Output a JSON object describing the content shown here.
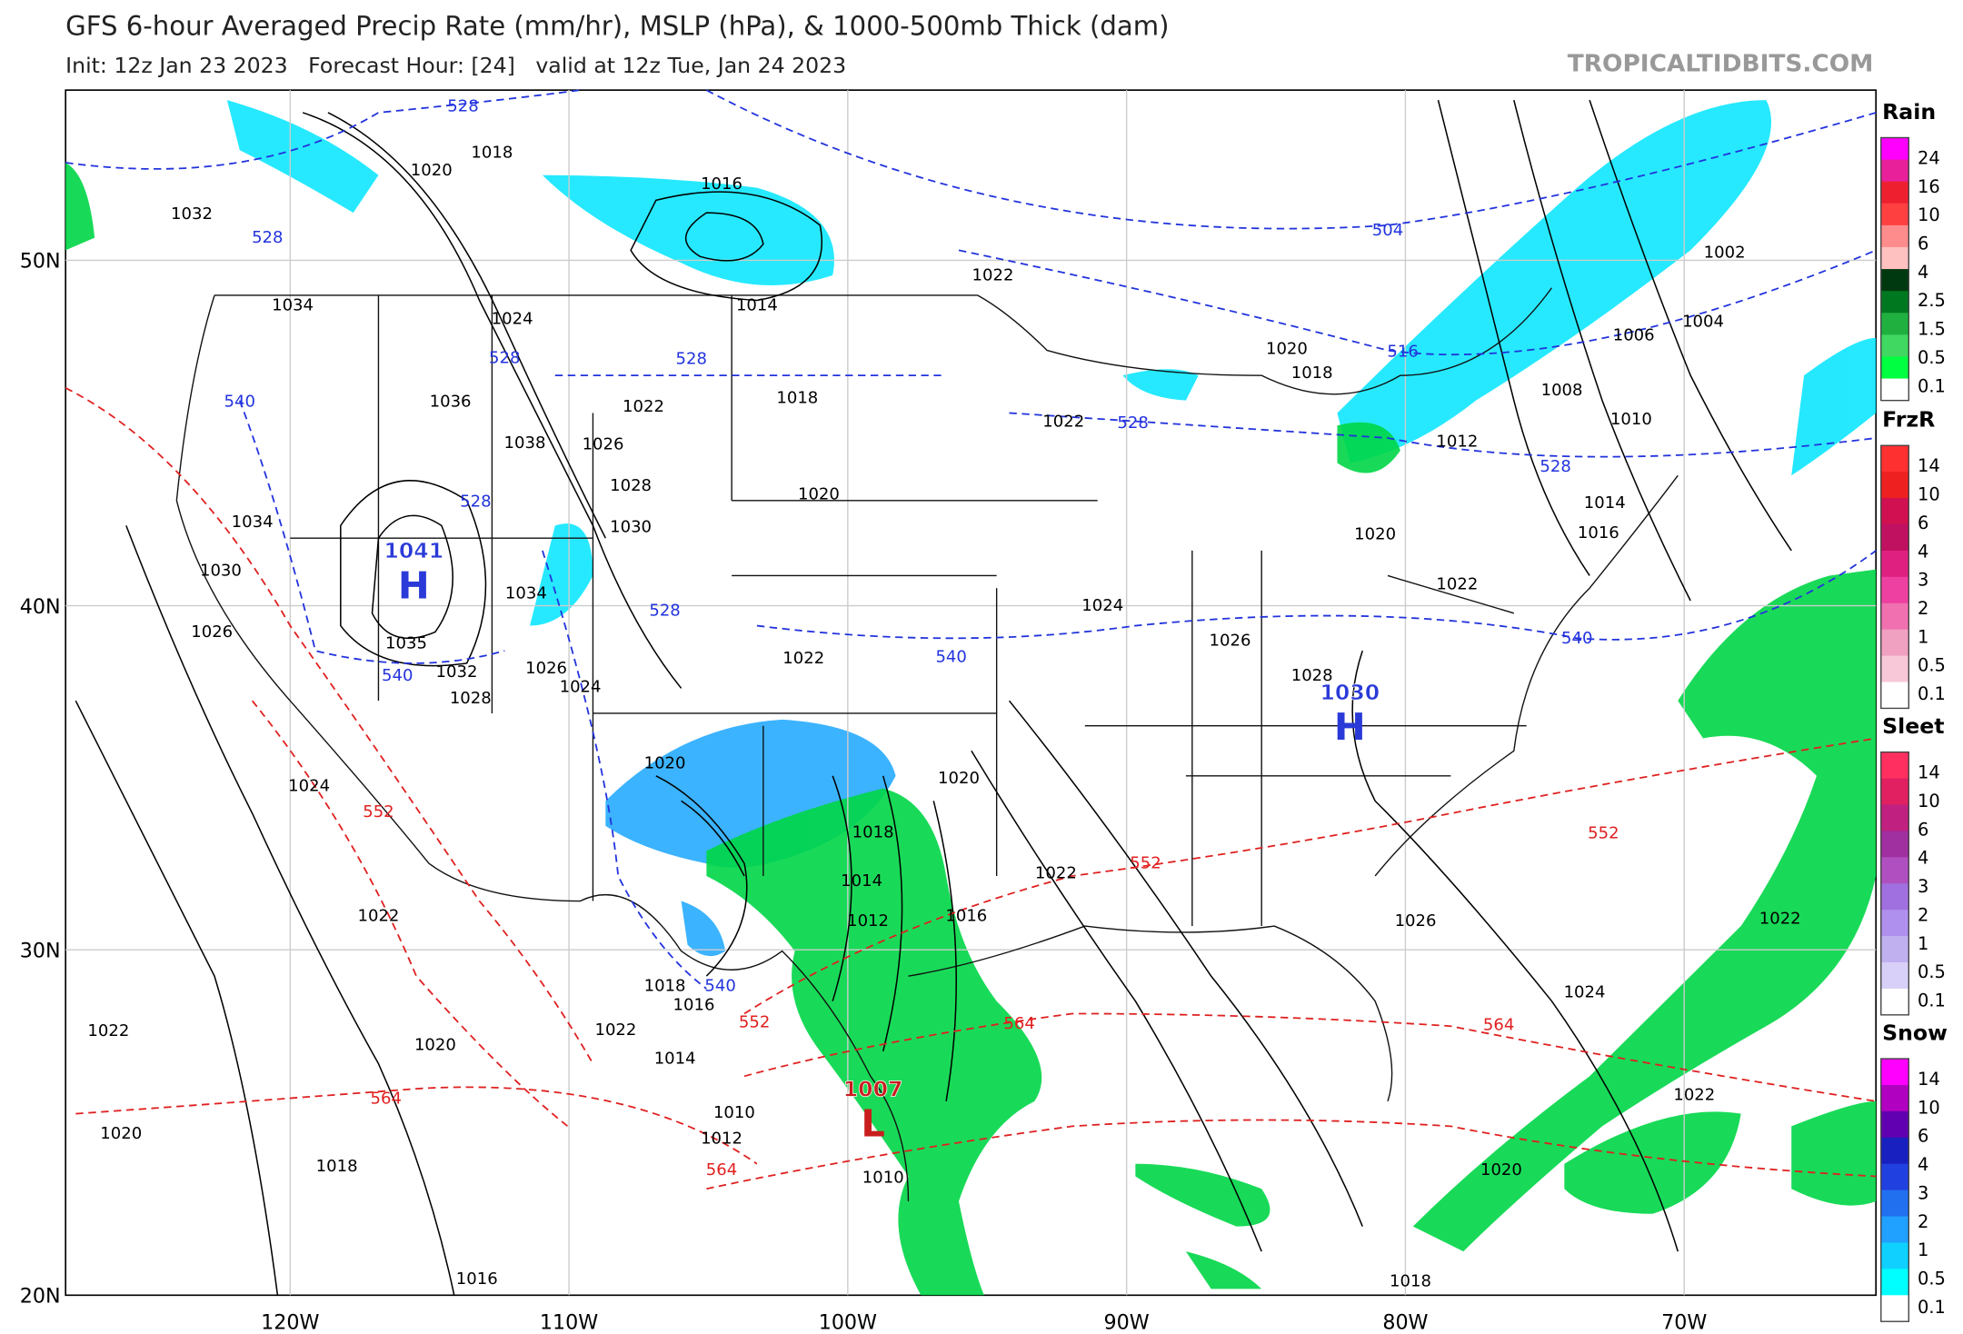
{
  "header": {
    "title": "GFS 6-hour Averaged Precip Rate (mm/hr), MSLP (hPa), & 1000-500mb Thick (dam)",
    "subtitle": "Init: 12z Jan 23 2023   Forecast Hour: [24]   valid at 12z Tue, Jan 24 2023",
    "watermark": "TROPICALTIDBITS.COM"
  },
  "axes": {
    "lat_labels": [
      "50N",
      "40N",
      "30N",
      "20N"
    ],
    "lon_labels": [
      "120W",
      "110W",
      "100W",
      "90W",
      "80W",
      "70W"
    ]
  },
  "pressure_centers": [
    {
      "value": "1041",
      "symbol": "H"
    },
    {
      "value": "1030",
      "symbol": "H"
    },
    {
      "value": "1007",
      "symbol": "L"
    }
  ],
  "isobar_labels": [
    "1020",
    "1018",
    "1032",
    "1016",
    "1034",
    "1024",
    "1014",
    "1022",
    "1036",
    "1038",
    "1026",
    "1028",
    "1030",
    "1034",
    "1030",
    "1026",
    "1034",
    "1035",
    "1032",
    "1028",
    "1026",
    "1024",
    "1022",
    "1022",
    "1018",
    "1020",
    "1022",
    "1024",
    "1026",
    "1028",
    "1020",
    "1018",
    "1020",
    "1022",
    "1012",
    "1008",
    "1006",
    "1004",
    "1002",
    "1010",
    "1014",
    "1016",
    "1020",
    "1020",
    "1018",
    "1014",
    "1012",
    "1016",
    "1022",
    "1026",
    "1024",
    "1022",
    "1022",
    "1020",
    "1018",
    "1024",
    "1022",
    "1022",
    "1020",
    "1022",
    "1018",
    "1016",
    "1014",
    "1010",
    "1012",
    "1010",
    "1020",
    "1018",
    "1016"
  ],
  "thickness_labels": [
    "528",
    "528",
    "504",
    "516",
    "528",
    "528",
    "540",
    "528",
    "528",
    "540",
    "528",
    "528",
    "540",
    "540",
    "540",
    "552",
    "552",
    "552",
    "564",
    "564",
    "564",
    "552",
    "564"
  ],
  "legend": [
    {
      "title": "Rain",
      "labels": [
        "24",
        "16",
        "10",
        "6",
        "4",
        "2.5",
        "1.5",
        "0.5",
        "0.1"
      ]
    },
    {
      "title": "FrzR",
      "labels": [
        "14",
        "10",
        "6",
        "4",
        "3",
        "2",
        "1",
        "0.5",
        "0.1"
      ]
    },
    {
      "title": "Sleet",
      "labels": [
        "14",
        "10",
        "6",
        "4",
        "3",
        "2",
        "1",
        "0.5",
        "0.1"
      ]
    },
    {
      "title": "Snow",
      "labels": [
        "14",
        "10",
        "6",
        "4",
        "3",
        "2",
        "1",
        "0.5",
        "0.1"
      ]
    }
  ]
}
